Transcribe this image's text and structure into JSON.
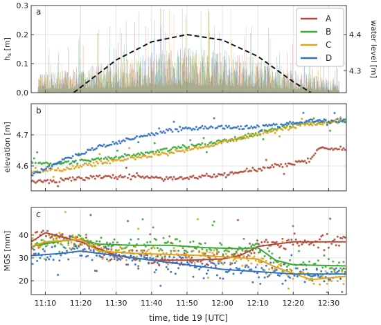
{
  "figure": {
    "xlabel": "time, tide 19  [UTC]"
  },
  "series_legend": [
    {
      "name": "A",
      "color": "#b5473a"
    },
    {
      "name": "B",
      "color": "#3aa935"
    },
    {
      "name": "C",
      "color": "#e0a21b"
    },
    {
      "name": "D",
      "color": "#2f6fc4"
    }
  ],
  "chart_data": [
    {
      "panel": "a",
      "type": "bar",
      "ylabel": "h_s [m]",
      "ylabel_right": "water level [m]",
      "xlim": [
        "11:06",
        "12:35"
      ],
      "ylim": [
        0,
        0.3
      ],
      "yticks": [
        "0.0",
        "0.1",
        "0.2",
        "0.3"
      ],
      "ylim_right": [
        4.24,
        4.48
      ],
      "yticks_right": [
        "4.3",
        "4.4"
      ],
      "grid": true,
      "legend": "top-right",
      "envelope_hs": {
        "x": [
          "11:10",
          "11:20",
          "11:30",
          "11:40",
          "11:50",
          "12:00",
          "12:10",
          "12:20",
          "12:30"
        ],
        "y": [
          0.07,
          0.09,
          0.11,
          0.14,
          0.16,
          0.15,
          0.12,
          0.08,
          0.05
        ]
      },
      "water_level": {
        "x": [
          "11:18",
          "11:30",
          "11:40",
          "11:50",
          "12:00",
          "12:10",
          "12:20",
          "12:25"
        ],
        "y": [
          4.24,
          4.33,
          4.38,
          4.4,
          4.385,
          4.34,
          4.27,
          4.24
        ]
      }
    },
    {
      "panel": "b",
      "type": "scatter",
      "ylabel": "elevation [m]",
      "xlim": [
        "11:06",
        "12:35"
      ],
      "ylim": [
        4.52,
        4.8
      ],
      "yticks": [
        "4.6",
        "4.7"
      ],
      "grid": true,
      "series": [
        {
          "name": "A",
          "x": [
            "11:06",
            "11:15",
            "11:25",
            "11:35",
            "11:45",
            "11:55",
            "12:05",
            "12:15",
            "12:25",
            "12:27",
            "12:35"
          ],
          "y": [
            4.55,
            4.555,
            4.565,
            4.565,
            4.56,
            4.565,
            4.58,
            4.6,
            4.62,
            4.655,
            4.655
          ]
        },
        {
          "name": "B",
          "x": [
            "11:06",
            "11:15",
            "11:25",
            "11:35",
            "11:45",
            "11:55",
            "12:05",
            "12:15",
            "12:25",
            "12:35"
          ],
          "y": [
            4.61,
            4.61,
            4.62,
            4.635,
            4.655,
            4.67,
            4.69,
            4.72,
            4.74,
            4.745
          ]
        },
        {
          "name": "C",
          "x": [
            "11:06",
            "11:15",
            "11:25",
            "11:35",
            "11:45",
            "11:55",
            "12:05",
            "12:15",
            "12:25",
            "12:35"
          ],
          "y": [
            4.58,
            4.59,
            4.61,
            4.625,
            4.64,
            4.66,
            4.69,
            4.715,
            4.735,
            4.745
          ]
        },
        {
          "name": "D",
          "x": [
            "11:06",
            "11:15",
            "11:25",
            "11:35",
            "11:45",
            "11:55",
            "12:05",
            "12:15",
            "12:25",
            "12:35"
          ],
          "y": [
            4.57,
            4.62,
            4.66,
            4.69,
            4.715,
            4.725,
            4.725,
            4.73,
            4.745,
            4.745
          ]
        }
      ]
    },
    {
      "panel": "c",
      "type": "scatter",
      "ylabel": "MGS [mm]",
      "xlim": [
        "11:06",
        "12:35"
      ],
      "ylim": [
        14,
        52
      ],
      "yticks": [
        "20",
        "30",
        "40"
      ],
      "xticks": [
        "11:10",
        "11:20",
        "11:30",
        "11:40",
        "11:50",
        "12:00",
        "12:10",
        "12:20",
        "12:30"
      ],
      "grid": true,
      "series": [
        {
          "name": "A",
          "x": [
            "11:06",
            "11:10",
            "11:20",
            "11:30",
            "11:40",
            "11:50",
            "12:00",
            "12:05",
            "12:10",
            "12:20",
            "12:35"
          ],
          "y": [
            37,
            41,
            37,
            31,
            29,
            29,
            29.5,
            31,
            35,
            37,
            37
          ]
        },
        {
          "name": "B",
          "x": [
            "11:06",
            "11:15",
            "11:20",
            "11:25",
            "11:35",
            "11:45",
            "11:55",
            "12:05",
            "12:10",
            "12:15",
            "12:20",
            "12:35"
          ],
          "y": [
            35,
            37.5,
            38,
            36,
            35.5,
            35.5,
            34.5,
            34,
            34.5,
            29,
            27,
            26.5
          ]
        },
        {
          "name": "C",
          "x": [
            "11:06",
            "11:10",
            "11:20",
            "11:25",
            "11:35",
            "11:45",
            "11:55",
            "12:05",
            "12:10",
            "12:15",
            "12:25",
            "12:35"
          ],
          "y": [
            35,
            37,
            38,
            33,
            32,
            31.5,
            31,
            30,
            29.5,
            26,
            20.5,
            22
          ]
        },
        {
          "name": "D",
          "x": [
            "11:06",
            "11:15",
            "11:20",
            "11:30",
            "11:40",
            "11:50",
            "12:00",
            "12:10",
            "12:20",
            "12:35"
          ],
          "y": [
            31,
            32,
            33,
            31,
            29,
            27,
            25,
            24,
            23,
            23
          ]
        }
      ]
    }
  ]
}
